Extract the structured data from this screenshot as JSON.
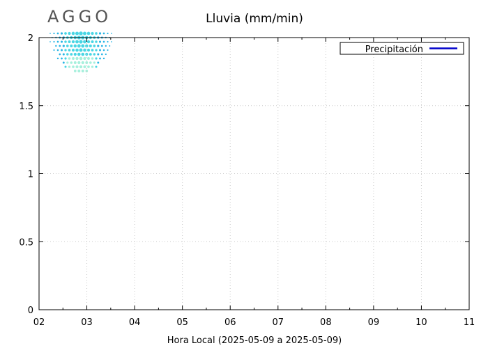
{
  "logo": {
    "text": "AGGO",
    "dot_colors": [
      "#29b6e6",
      "#49d6e4",
      "#a6f0dc"
    ]
  },
  "chart_data": {
    "type": "line",
    "title": "Lluvia (mm/min)",
    "xlabel": "Hora Local (2025-05-09 a 2025-05-09)",
    "ylabel": "",
    "x_ticks": [
      "02",
      "03",
      "04",
      "05",
      "06",
      "07",
      "08",
      "09",
      "10",
      "11"
    ],
    "x_range": [
      2,
      11
    ],
    "y_ticks": [
      "0",
      "0.5",
      "1",
      "1.5",
      "2"
    ],
    "y_range": [
      0,
      2
    ],
    "grid": true,
    "legend_position": "top-right",
    "series": [
      {
        "name": "Precipitación",
        "color": "#0000cc",
        "x": [],
        "y": []
      }
    ]
  }
}
